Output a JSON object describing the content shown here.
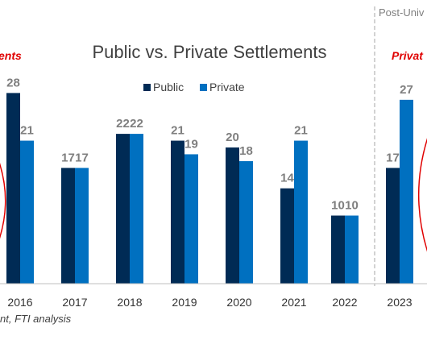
{
  "chart_data": {
    "type": "bar",
    "title": "Public vs. Private Settlements",
    "categories": [
      "2016",
      "2017",
      "2018",
      "2019",
      "2020",
      "2021",
      "2022",
      "2023"
    ],
    "series": [
      {
        "name": "Public",
        "values": [
          28,
          17,
          22,
          21,
          20,
          14,
          10,
          17
        ],
        "color": "#002b55"
      },
      {
        "name": "Private",
        "values": [
          21,
          17,
          22,
          19,
          18,
          21,
          10,
          27
        ],
        "color": "#0070c0"
      }
    ],
    "ylim": [
      0,
      28
    ],
    "grid": false,
    "legend_placement": "top-center",
    "annotations": {
      "left_note": "ents",
      "right_note": "Privat",
      "post_note": "Post-Univ",
      "source": "nt, FTI analysis"
    },
    "accent_color": "#e00000"
  }
}
